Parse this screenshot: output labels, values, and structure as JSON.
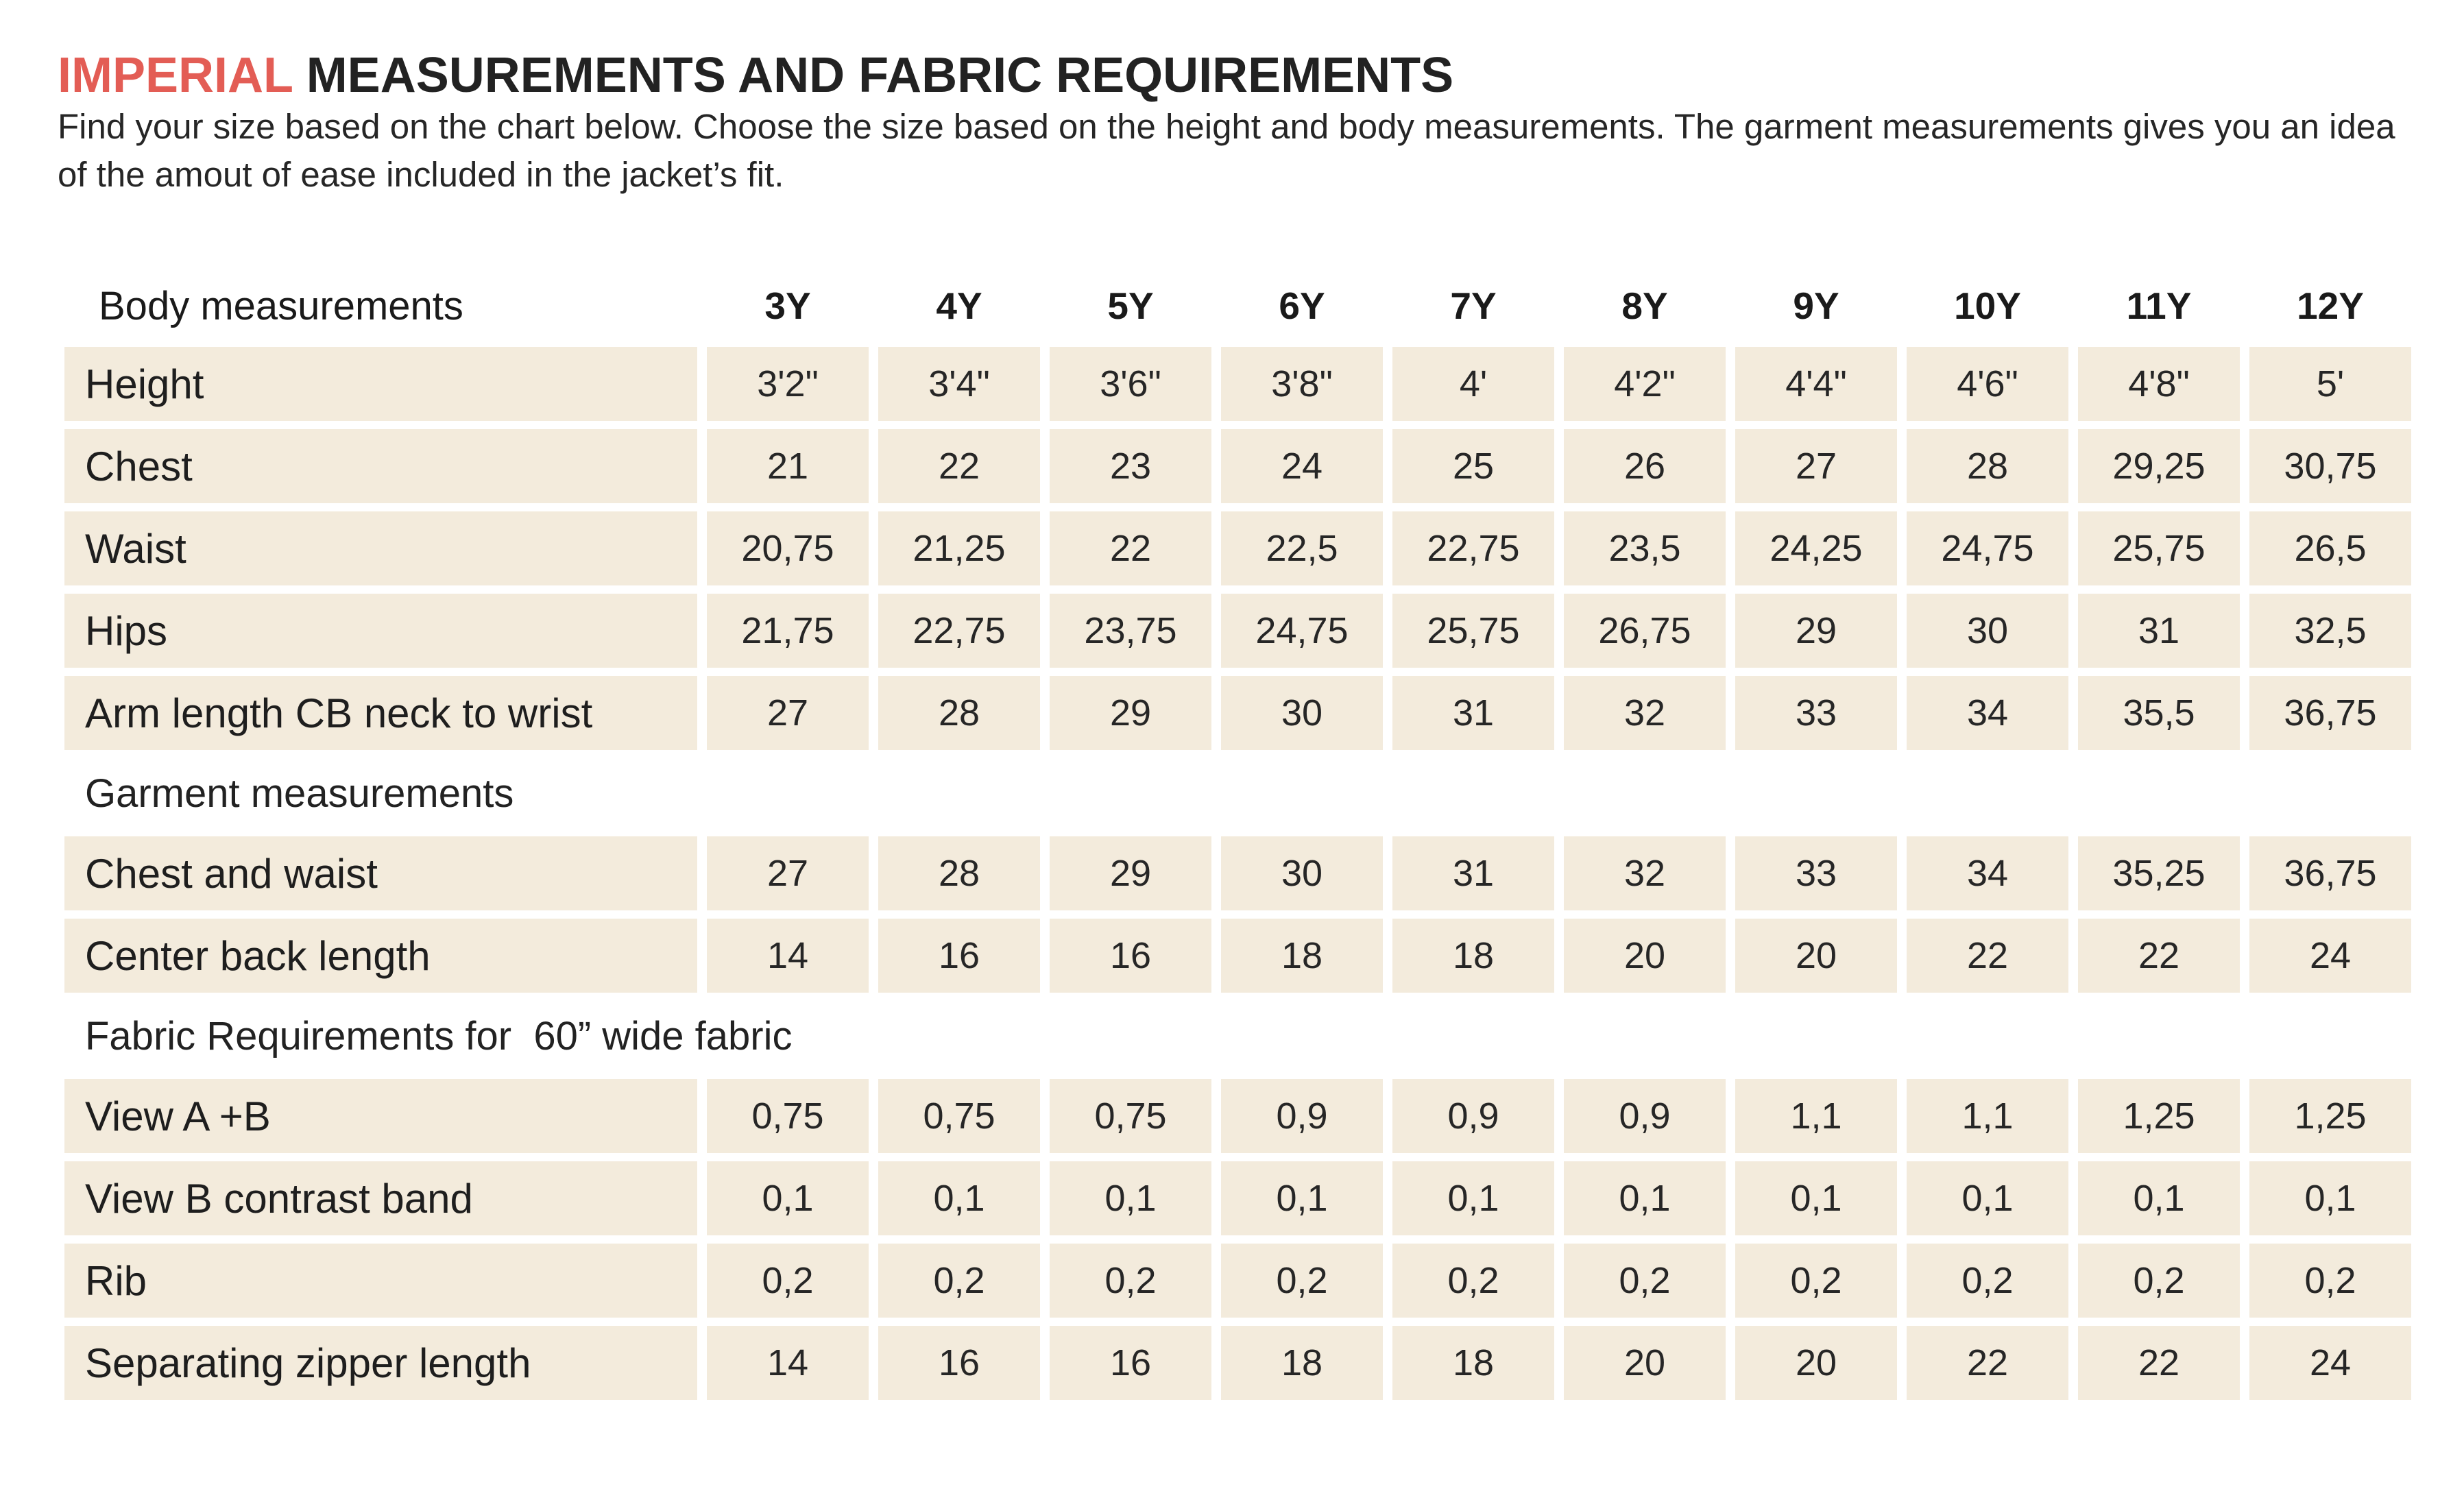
{
  "title": {
    "accent": "IMPERIAL",
    "rest": " MEASUREMENTS AND FABRIC REQUIREMENTS"
  },
  "description": "Find your size based on the chart below. Choose the size based on the height and body measurements. The garment measurements gives you an idea of the amout of ease included in the jacket’s fit.",
  "colors": {
    "accent": "#e35d55",
    "cell_background": "#f3ebdc",
    "text": "#1e1e1e"
  },
  "table": {
    "header_label": "Body measurements",
    "sizes": [
      "3Y",
      "4Y",
      "5Y",
      "6Y",
      "7Y",
      "8Y",
      "9Y",
      "10Y",
      "11Y",
      "12Y"
    ],
    "sections": [
      {
        "title": "",
        "rows": [
          {
            "label": "Height",
            "values": [
              "3'2\"",
              "3'4\"",
              "3'6\"",
              "3'8\"",
              "4'",
              "4'2\"",
              "4'4\"",
              "4'6\"",
              "4'8\"",
              "5'"
            ]
          },
          {
            "label": "Chest",
            "values": [
              "21",
              "22",
              "23",
              "24",
              "25",
              "26",
              "27",
              "28",
              "29,25",
              "30,75"
            ]
          },
          {
            "label": "Waist",
            "values": [
              "20,75",
              "21,25",
              "22",
              "22,5",
              "22,75",
              "23,5",
              "24,25",
              "24,75",
              "25,75",
              "26,5"
            ]
          },
          {
            "label": "Hips",
            "values": [
              "21,75",
              "22,75",
              "23,75",
              "24,75",
              "25,75",
              "26,75",
              "29",
              "30",
              "31",
              "32,5"
            ]
          },
          {
            "label": "Arm length CB neck to wrist",
            "values": [
              "27",
              "28",
              "29",
              "30",
              "31",
              "32",
              "33",
              "34",
              "35,5",
              "36,75"
            ]
          }
        ]
      },
      {
        "title": "Garment measurements",
        "rows": [
          {
            "label": "Chest and waist",
            "values": [
              "27",
              "28",
              "29",
              "30",
              "31",
              "32",
              "33",
              "34",
              "35,25",
              "36,75"
            ]
          },
          {
            "label": "Center back length",
            "values": [
              "14",
              "16",
              "16",
              "18",
              "18",
              "20",
              "20",
              "22",
              "22",
              "24"
            ]
          }
        ]
      },
      {
        "title": "Fabric Requirements for  60” wide fabric",
        "rows": [
          {
            "label": "View A +B",
            "values": [
              "0,75",
              "0,75",
              "0,75",
              "0,9",
              "0,9",
              "0,9",
              "1,1",
              "1,1",
              "1,25",
              "1,25"
            ]
          },
          {
            "label": "View B contrast band",
            "values": [
              "0,1",
              "0,1",
              "0,1",
              "0,1",
              "0,1",
              "0,1",
              "0,1",
              "0,1",
              "0,1",
              "0,1"
            ]
          },
          {
            "label": "Rib",
            "values": [
              "0,2",
              "0,2",
              "0,2",
              "0,2",
              "0,2",
              "0,2",
              "0,2",
              "0,2",
              "0,2",
              "0,2"
            ]
          },
          {
            "label": "Separating zipper length",
            "values": [
              "14",
              "16",
              "16",
              "18",
              "18",
              "20",
              "20",
              "22",
              "22",
              "24"
            ]
          }
        ]
      }
    ]
  }
}
